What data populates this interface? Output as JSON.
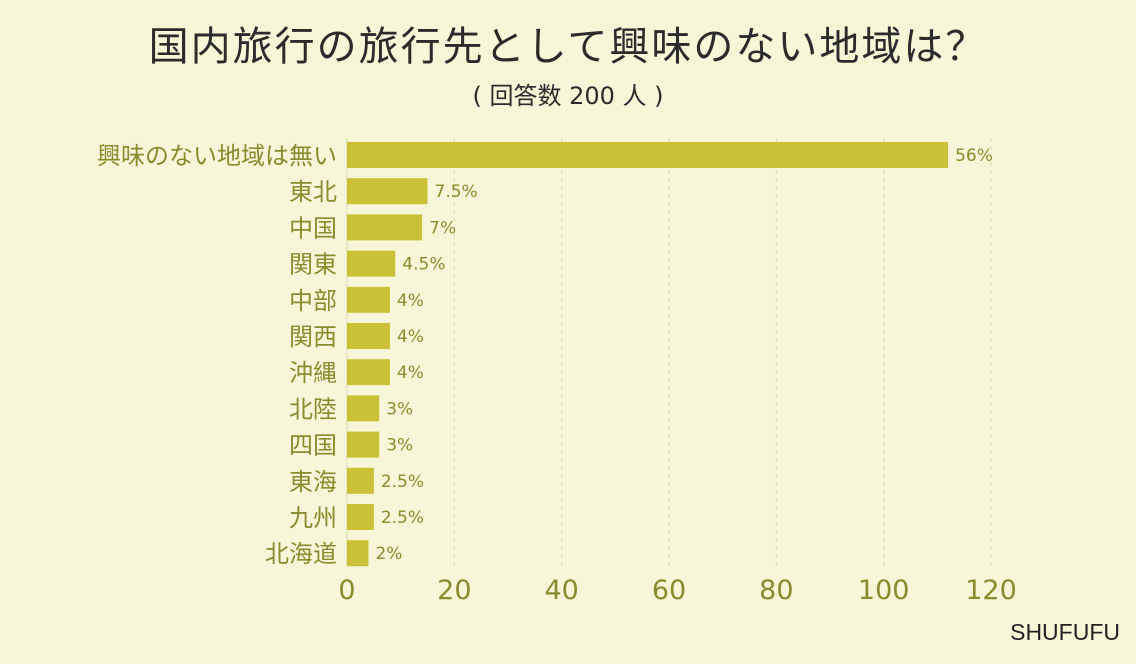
{
  "title": "国内旅行の旅行先として興味のない地域は？",
  "subtitle": "( 回答数 200 人 )",
  "credit": "SHUFUFU",
  "colors": {
    "bar": "#cbc136",
    "label": "#8a8a2e",
    "background": "#f7f6d8",
    "grid": "#d9d8b8"
  },
  "chart_data": {
    "type": "bar",
    "orientation": "horizontal",
    "categories": [
      "興味のない地域は無い",
      "東北",
      "中国",
      "関東",
      "中部",
      "関西",
      "沖縄",
      "北陸",
      "四国",
      "東海",
      "九州",
      "北海道"
    ],
    "values": [
      112,
      15,
      14,
      9,
      8,
      8,
      8,
      6,
      6,
      5,
      5,
      4
    ],
    "value_labels": [
      "56%",
      "7.5%",
      "7%",
      "4.5%",
      "4%",
      "4%",
      "4%",
      "3%",
      "3%",
      "2.5%",
      "2.5%",
      "2%"
    ],
    "xlim": [
      0,
      120
    ],
    "xticks": [
      "0",
      "20",
      "40",
      "60",
      "80",
      "100",
      "120"
    ],
    "grid": "vertical dashed",
    "xlabel": "",
    "ylabel": ""
  }
}
